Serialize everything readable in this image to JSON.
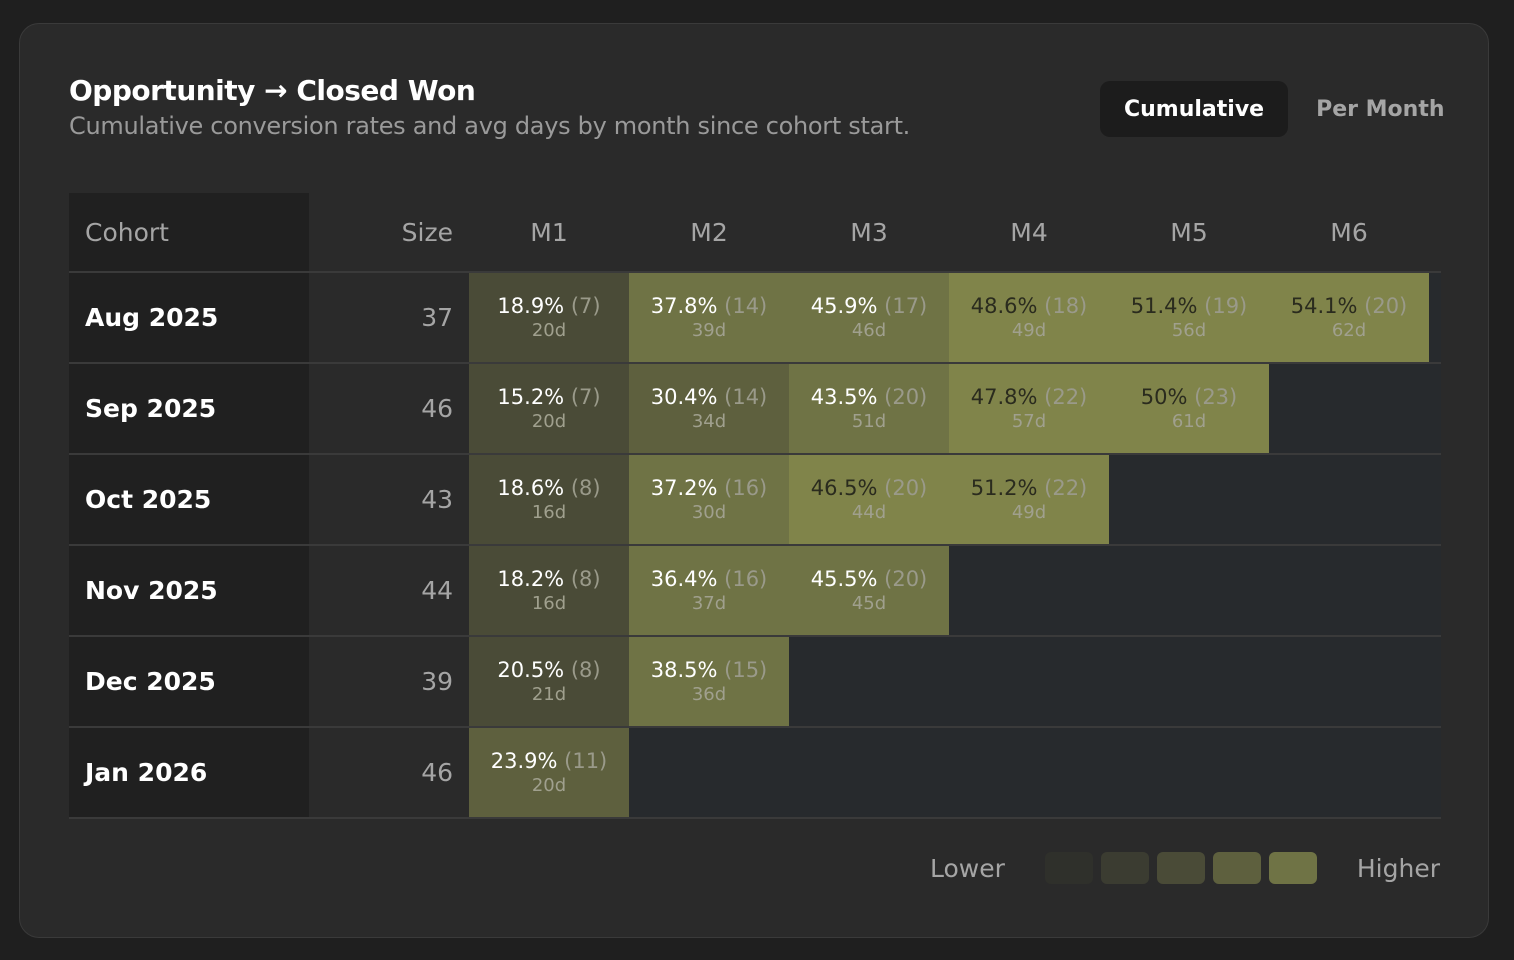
{
  "header": {
    "title": "Opportunity → Closed Won",
    "subtitle": "Cumulative conversion rates and avg days by month since cohort start."
  },
  "toggle": {
    "options": [
      "Cumulative",
      "Per Month"
    ],
    "selected": "Cumulative"
  },
  "table": {
    "columns": [
      "Cohort",
      "Size",
      "M1",
      "M2",
      "M3",
      "M4",
      "M5",
      "M6"
    ],
    "rows": [
      {
        "cohort": "Aug 2025",
        "size": "37",
        "cells": [
          {
            "pct": "18.9%",
            "count": "(7)",
            "days": "20d",
            "level": 2
          },
          {
            "pct": "37.8%",
            "count": "(14)",
            "days": "39d",
            "level": 4
          },
          {
            "pct": "45.9%",
            "count": "(17)",
            "days": "46d",
            "level": 4
          },
          {
            "pct": "48.6%",
            "count": "(18)",
            "days": "49d",
            "level": 5
          },
          {
            "pct": "51.4%",
            "count": "(19)",
            "days": "56d",
            "level": 5
          },
          {
            "pct": "54.1%",
            "count": "(20)",
            "days": "62d",
            "level": 5
          }
        ]
      },
      {
        "cohort": "Sep 2025",
        "size": "46",
        "cells": [
          {
            "pct": "15.2%",
            "count": "(7)",
            "days": "20d",
            "level": 2
          },
          {
            "pct": "30.4%",
            "count": "(14)",
            "days": "34d",
            "level": 3
          },
          {
            "pct": "43.5%",
            "count": "(20)",
            "days": "51d",
            "level": 4
          },
          {
            "pct": "47.8%",
            "count": "(22)",
            "days": "57d",
            "level": 5
          },
          {
            "pct": "50%",
            "count": "(23)",
            "days": "61d",
            "level": 5
          }
        ]
      },
      {
        "cohort": "Oct 2025",
        "size": "43",
        "cells": [
          {
            "pct": "18.6%",
            "count": "(8)",
            "days": "16d",
            "level": 2
          },
          {
            "pct": "37.2%",
            "count": "(16)",
            "days": "30d",
            "level": 4
          },
          {
            "pct": "46.5%",
            "count": "(20)",
            "days": "44d",
            "level": 5
          },
          {
            "pct": "51.2%",
            "count": "(22)",
            "days": "49d",
            "level": 5
          }
        ]
      },
      {
        "cohort": "Nov 2025",
        "size": "44",
        "cells": [
          {
            "pct": "18.2%",
            "count": "(8)",
            "days": "16d",
            "level": 2
          },
          {
            "pct": "36.4%",
            "count": "(16)",
            "days": "37d",
            "level": 4
          },
          {
            "pct": "45.5%",
            "count": "(20)",
            "days": "45d",
            "level": 4
          }
        ]
      },
      {
        "cohort": "Dec 2025",
        "size": "39",
        "cells": [
          {
            "pct": "20.5%",
            "count": "(8)",
            "days": "21d",
            "level": 2
          },
          {
            "pct": "38.5%",
            "count": "(15)",
            "days": "36d",
            "level": 4
          }
        ]
      },
      {
        "cohort": "Jan 2026",
        "size": "46",
        "cells": [
          {
            "pct": "23.9%",
            "count": "(11)",
            "days": "20d",
            "level": 3
          }
        ]
      }
    ]
  },
  "legend": {
    "low_label": "Lower",
    "high_label": "Higher",
    "colors": [
      "#2f302b",
      "#3b3c31",
      "#4a4b37",
      "#5e603e",
      "#6f7345",
      "#80844a"
    ]
  }
}
